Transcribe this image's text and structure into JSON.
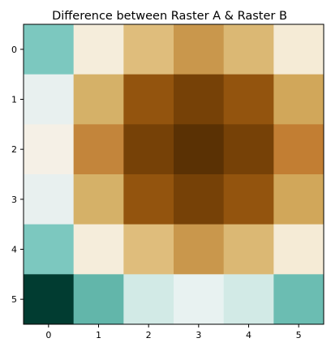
{
  "chart_data": {
    "type": "heatmap",
    "title": "Difference between Raster A & Raster B",
    "xlabel": "",
    "ylabel": "",
    "x_ticks": [
      "0",
      "1",
      "2",
      "3",
      "4",
      "5"
    ],
    "y_ticks": [
      "0",
      "1",
      "2",
      "3",
      "4",
      "5"
    ],
    "colormap": "BrBG",
    "grid": false,
    "legend": "none",
    "cell_colors": [
      [
        "#7cc8bf",
        "#f5eddb",
        "#dfbd7c",
        "#c9974c",
        "#dbb874",
        "#f5ebd6"
      ],
      [
        "#e8f0ef",
        "#d5b168",
        "#93540e",
        "#764107",
        "#93540e",
        "#d1a75a"
      ],
      [
        "#f5f0e6",
        "#c3853b",
        "#764107",
        "#5a3104",
        "#764107",
        "#c27e33"
      ],
      [
        "#e8f0ef",
        "#d5b168",
        "#93540e",
        "#764107",
        "#93540e",
        "#d1a75a"
      ],
      [
        "#7cc8bf",
        "#f5eddb",
        "#dfbd7c",
        "#c9974c",
        "#dbb874",
        "#f5ebd6"
      ],
      [
        "#013c31",
        "#62b6aa",
        "#d2eae6",
        "#e8f2f1",
        "#d2eae6",
        "#6bbdb2"
      ]
    ]
  }
}
